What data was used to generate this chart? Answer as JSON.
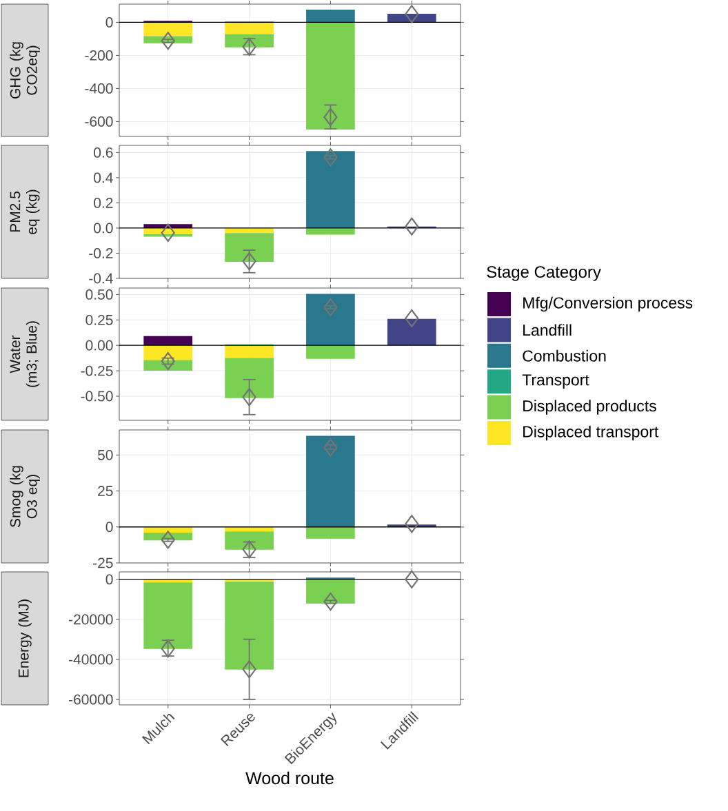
{
  "chart_data": [
    {
      "type": "bar",
      "stacked": true,
      "ylabel": "GHG (kg CO2eq)",
      "categories": [
        null,
        null,
        null,
        null
      ],
      "ylim": [
        -690,
        110
      ],
      "yticks": [
        -600,
        -400,
        -200,
        0
      ],
      "grid": true,
      "tick_labels": "y",
      "legend": "right",
      "legend_title": "Stage Category",
      "ref_lines": [
        {
          "axis": "y",
          "value": 0,
          "color": "#000000"
        }
      ],
      "series": [
        {
          "name": "Displaced transport",
          "color": "#fde725",
          "values": [
            -84,
            -71,
            null,
            null
          ]
        },
        {
          "name": "Displaced products",
          "color": "#7ad151",
          "values": [
            -43,
            -81,
            -648,
            null
          ]
        },
        {
          "name": "Transport",
          "color": "#22a884",
          "values": [
            null,
            5,
            null,
            null
          ]
        },
        {
          "name": "Combustion",
          "color": "#2a788e",
          "values": [
            null,
            null,
            77,
            null
          ]
        },
        {
          "name": "Landfill",
          "color": "#414487",
          "values": [
            null,
            null,
            null,
            52
          ]
        },
        {
          "name": "Mfg/Conversion process",
          "color": "#440154",
          "values": [
            9,
            null,
            null,
            null
          ]
        },
        {
          "type": "scatter",
          "marker": "diamond",
          "color": "#737373",
          "values": [
            -112,
            -148,
            -573,
            50
          ],
          "errors": [
            [
              -122,
              -103
            ],
            [
              -196,
              -98
            ],
            [
              -645,
              -500
            ],
            null
          ]
        }
      ]
    },
    {
      "type": "bar",
      "stacked": true,
      "ylabel": "PM2.5 eq (kg)",
      "categories": [
        null,
        null,
        null,
        null
      ],
      "ylim": [
        -0.4,
        0.657
      ],
      "yticks": [
        {
          "value": -0.4,
          "label": "-0.4"
        },
        {
          "value": -0.2,
          "label": "-0.2"
        },
        {
          "value": 0,
          "label": "0.0"
        },
        0.2,
        0.4,
        0.6
      ],
      "grid": true,
      "tick_labels": "y",
      "ref_lines": [
        {
          "axis": "y",
          "value": 0,
          "color": "#000000"
        }
      ],
      "series": [
        {
          "color": "#fde725",
          "values": [
            -0.05,
            -0.04,
            null,
            null
          ]
        },
        {
          "color": "#7ad151",
          "values": [
            -0.019,
            -0.229,
            -0.052,
            null
          ]
        },
        {
          "color": "#2a788e",
          "values": [
            null,
            null,
            0.612,
            null
          ]
        },
        {
          "color": "#414487",
          "values": [
            null,
            null,
            null,
            0.012
          ]
        },
        {
          "color": "#440154",
          "values": [
            0.031,
            null,
            null,
            null
          ]
        },
        {
          "type": "scatter",
          "marker": "diamond",
          "color": "#737373",
          "values": [
            -0.038,
            -0.264,
            0.562,
            0.012
          ],
          "errors": [
            null,
            [
              -0.355,
              -0.176
            ],
            [
              0.55,
              0.575
            ],
            null
          ]
        }
      ]
    },
    {
      "type": "bar",
      "stacked": true,
      "ylabel": "Water (m3; Blue)",
      "categories": [
        null,
        null,
        null,
        null
      ],
      "ylim": [
        -0.737,
        0.564
      ],
      "yticks": [
        {
          "value": -0.5,
          "label": "-0.50"
        },
        {
          "value": -0.25,
          "label": "-0.25"
        },
        {
          "value": 0,
          "label": "0.00"
        },
        0.25,
        {
          "value": 0.5,
          "label": "0.50"
        }
      ],
      "grid": true,
      "tick_labels": "y",
      "ref_lines": [
        {
          "axis": "y",
          "value": 0,
          "color": "#000000"
        }
      ],
      "series": [
        {
          "color": "#fde725",
          "values": [
            -0.146,
            -0.123,
            null,
            null
          ]
        },
        {
          "color": "#7ad151",
          "values": [
            -0.103,
            -0.395,
            -0.132,
            null
          ]
        },
        {
          "color": "#22a884",
          "values": [
            null,
            0.009,
            null,
            null
          ]
        },
        {
          "color": "#2a788e",
          "values": [
            null,
            null,
            0.506,
            null
          ]
        },
        {
          "color": "#414487",
          "values": [
            null,
            null,
            null,
            0.26
          ]
        },
        {
          "color": "#440154",
          "values": [
            0.091,
            null,
            null,
            null
          ]
        },
        {
          "type": "scatter",
          "marker": "diamond",
          "color": "#737373",
          "values": [
            -0.155,
            -0.509,
            0.374,
            0.266
          ],
          "errors": [
            [
              -0.185,
              -0.125
            ],
            [
              -0.681,
              -0.336
            ],
            [
              0.36,
              0.39
            ],
            null
          ]
        }
      ]
    },
    {
      "type": "bar",
      "stacked": true,
      "ylabel": "Smog (kg O3 eq)",
      "categories": [
        null,
        null,
        null,
        null
      ],
      "ylim": [
        -25,
        67.4
      ],
      "yticks": [
        -25,
        0,
        25,
        50
      ],
      "grid": true,
      "tick_labels": "y",
      "ref_lines": [
        {
          "axis": "y",
          "value": 0,
          "color": "#000000"
        }
      ],
      "series": [
        {
          "color": "#fde725",
          "values": [
            -3.9,
            -3.1,
            null,
            null
          ]
        },
        {
          "color": "#7ad151",
          "values": [
            -5.4,
            -12.7,
            -8.1,
            null
          ]
        },
        {
          "color": "#2a788e",
          "values": [
            null,
            null,
            63.3,
            null
          ]
        },
        {
          "color": "#414487",
          "values": [
            null,
            null,
            null,
            1.7
          ]
        },
        {
          "type": "scatter",
          "marker": "diamond",
          "color": "#737373",
          "values": [
            -8.9,
            -15.6,
            55.2,
            2.1
          ],
          "errors": [
            [
              -10,
              -8
            ],
            [
              -21.2,
              -10.4
            ],
            [
              54,
              57
            ],
            null
          ]
        }
      ]
    },
    {
      "type": "bar",
      "stacked": true,
      "ylabel": "Energy (MJ)",
      "xlabel": "Wood route",
      "categories": [
        "Mulch",
        "Reuse",
        "BioEnergy",
        "Landfill"
      ],
      "ylim": [
        -62700,
        3740
      ],
      "yticks": [
        -60000,
        -40000,
        -20000,
        0
      ],
      "grid": true,
      "ref_lines": [
        {
          "axis": "y",
          "value": 0,
          "color": "#000000"
        }
      ],
      "series": [
        {
          "color": "#fde725",
          "values": [
            -1500,
            -1200,
            null,
            null
          ]
        },
        {
          "color": "#7ad151",
          "values": [
            -33200,
            -43900,
            -12100,
            null
          ]
        },
        {
          "color": "#2a788e",
          "values": [
            null,
            null,
            900,
            null
          ]
        },
        {
          "type": "scatter",
          "marker": "diamond",
          "color": "#737373",
          "values": [
            -34600,
            -44900,
            -11100,
            0
          ],
          "errors": [
            [
              -38300,
              -30400
            ],
            [
              -60000,
              -29900
            ],
            [
              -12000,
              -10500
            ],
            null
          ]
        }
      ]
    }
  ]
}
